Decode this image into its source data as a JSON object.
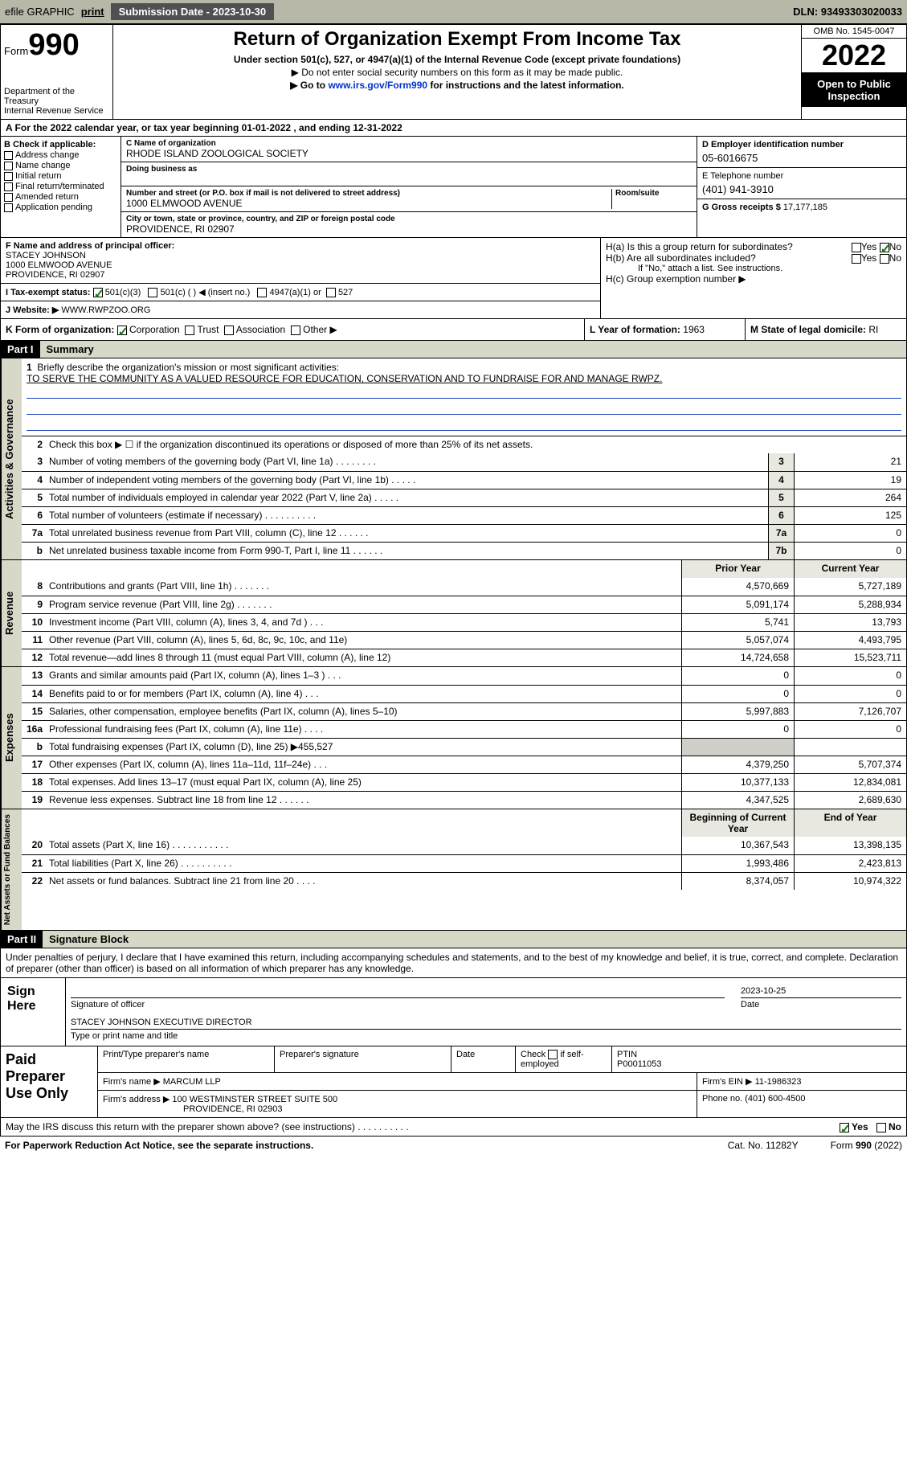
{
  "topbar": {
    "efile": "efile GRAPHIC",
    "print": "print",
    "sub_label": "Submission Date - 2023-10-30",
    "dln": "DLN: 93493303020033"
  },
  "header": {
    "form_word": "Form",
    "form_num": "990",
    "dept": "Department of the Treasury\nInternal Revenue Service",
    "title": "Return of Organization Exempt From Income Tax",
    "subtitle": "Under section 501(c), 527, or 4947(a)(1) of the Internal Revenue Code (except private foundations)",
    "do_not_enter": "▶ Do not enter social security numbers on this form as it may be made public.",
    "goto_pre": "▶ Go to ",
    "goto_link": "www.irs.gov/Form990",
    "goto_post": " for instructions and the latest information.",
    "omb": "OMB No. 1545-0047",
    "year": "2022",
    "inspect": "Open to Public Inspection"
  },
  "row_a": "A For the 2022 calendar year, or tax year beginning 01-01-2022    , and ending 12-31-2022",
  "col_b": {
    "label": "B Check if applicable:",
    "items": [
      "Address change",
      "Name change",
      "Initial return",
      "Final return/terminated",
      "Amended return",
      "Application pending"
    ]
  },
  "col_c": {
    "name_label": "C Name of organization",
    "name": "RHODE ISLAND ZOOLOGICAL SOCIETY",
    "dba_label": "Doing business as",
    "dba": "",
    "addr_label": "Number and street (or P.O. box if mail is not delivered to street address)",
    "room_label": "Room/suite",
    "addr": "1000 ELMWOOD AVENUE",
    "city_label": "City or town, state or province, country, and ZIP or foreign postal code",
    "city": "PROVIDENCE, RI  02907"
  },
  "col_d": {
    "ein_label": "D Employer identification number",
    "ein": "05-6016675",
    "phone_label": "E Telephone number",
    "phone": "(401) 941-3910",
    "gross_label": "G Gross receipts $",
    "gross": "17,177,185"
  },
  "col_f": {
    "label": "F Name and address of principal officer:",
    "name": "STACEY JOHNSON",
    "addr1": "1000 ELMWOOD AVENUE",
    "addr2": "PROVIDENCE, RI  02907"
  },
  "col_h": {
    "ha": "H(a)  Is this a group return for subordinates?",
    "ha_yes": "Yes",
    "ha_no": "No",
    "hb": "H(b)  Are all subordinates included?",
    "hb_note": "If \"No,\" attach a list. See instructions.",
    "hc": "H(c)  Group exemption number ▶"
  },
  "row_i": {
    "label": "I   Tax-exempt status:",
    "opt1": "501(c)(3)",
    "opt2": "501(c) (   ) ◀ (insert no.)",
    "opt3": "4947(a)(1) or",
    "opt4": "527"
  },
  "row_j": {
    "label": "J   Website: ▶",
    "value": "WWW.RWPZOO.ORG"
  },
  "row_k": "K Form of organization:",
  "row_k_opts": [
    "Corporation",
    "Trust",
    "Association",
    "Other ▶"
  ],
  "row_l_label": "L Year of formation:",
  "row_l_val": "1963",
  "row_m_label": "M State of legal domicile:",
  "row_m_val": "RI",
  "part1": {
    "num": "Part I",
    "title": "Summary"
  },
  "summary": {
    "l1a": "Briefly describe the organization's mission or most significant activities:",
    "l1b": "TO SERVE THE COMMUNITY AS A VALUED RESOURCE FOR EDUCATION, CONSERVATION AND TO FUNDRAISE FOR AND MANAGE RWPZ.",
    "l2": "Check this box ▶ ☐  if the organization discontinued its operations or disposed of more than 25% of its net assets.",
    "lines_gov": [
      {
        "n": "3",
        "d": "Number of voting members of the governing body (Part VI, line 1a)  .   .   .   .   .   .   .   .",
        "b": "3",
        "v": "21"
      },
      {
        "n": "4",
        "d": "Number of independent voting members of the governing body (Part VI, line 1b)  .   .   .   .   .",
        "b": "4",
        "v": "19"
      },
      {
        "n": "5",
        "d": "Total number of individuals employed in calendar year 2022 (Part V, line 2a)   .   .   .   .   .",
        "b": "5",
        "v": "264"
      },
      {
        "n": "6",
        "d": "Total number of volunteers (estimate if necessary)   .   .   .   .   .   .   .   .   .   .",
        "b": "6",
        "v": "125"
      },
      {
        "n": "7a",
        "d": "Total unrelated business revenue from Part VIII, column (C), line 12   .   .   .   .   .   .",
        "b": "7a",
        "v": "0"
      },
      {
        "n": "b",
        "d": "Net unrelated business taxable income from Form 990-T, Part I, line 11   .   .   .   .   .   .",
        "b": "7b",
        "v": "0"
      }
    ],
    "hdr_prior": "Prior Year",
    "hdr_curr": "Current Year",
    "lines_rev": [
      {
        "n": "8",
        "d": "Contributions and grants (Part VIII, line 1h)   .   .   .   .   .   .   .",
        "p": "4,570,669",
        "c": "5,727,189"
      },
      {
        "n": "9",
        "d": "Program service revenue (Part VIII, line 2g)   .   .   .   .   .   .   .",
        "p": "5,091,174",
        "c": "5,288,934"
      },
      {
        "n": "10",
        "d": "Investment income (Part VIII, column (A), lines 3, 4, and 7d )   .   .   .",
        "p": "5,741",
        "c": "13,793"
      },
      {
        "n": "11",
        "d": "Other revenue (Part VIII, column (A), lines 5, 6d, 8c, 9c, 10c, and 11e)",
        "p": "5,057,074",
        "c": "4,493,795"
      },
      {
        "n": "12",
        "d": "Total revenue—add lines 8 through 11 (must equal Part VIII, column (A), line 12)",
        "p": "14,724,658",
        "c": "15,523,711"
      }
    ],
    "lines_exp": [
      {
        "n": "13",
        "d": "Grants and similar amounts paid (Part IX, column (A), lines 1–3 )   .   .   .",
        "p": "0",
        "c": "0"
      },
      {
        "n": "14",
        "d": "Benefits paid to or for members (Part IX, column (A), line 4)   .   .   .",
        "p": "0",
        "c": "0"
      },
      {
        "n": "15",
        "d": "Salaries, other compensation, employee benefits (Part IX, column (A), lines 5–10)",
        "p": "5,997,883",
        "c": "7,126,707"
      },
      {
        "n": "16a",
        "d": "Professional fundraising fees (Part IX, column (A), line 11e)   .   .   .   .",
        "p": "0",
        "c": "0"
      },
      {
        "n": "b",
        "d": "Total fundraising expenses (Part IX, column (D), line 25) ▶455,527",
        "p": "",
        "c": "",
        "shade": true
      },
      {
        "n": "17",
        "d": "Other expenses (Part IX, column (A), lines 11a–11d, 11f–24e)   .   .   .",
        "p": "4,379,250",
        "c": "5,707,374"
      },
      {
        "n": "18",
        "d": "Total expenses. Add lines 13–17 (must equal Part IX, column (A), line 25)",
        "p": "10,377,133",
        "c": "12,834,081"
      },
      {
        "n": "19",
        "d": "Revenue less expenses. Subtract line 18 from line 12   .   .   .   .   .   .",
        "p": "4,347,525",
        "c": "2,689,630"
      }
    ],
    "hdr_beg": "Beginning of Current Year",
    "hdr_end": "End of Year",
    "lines_na": [
      {
        "n": "20",
        "d": "Total assets (Part X, line 16)   .   .   .   .   .   .   .   .   .   .   .",
        "p": "10,367,543",
        "c": "13,398,135"
      },
      {
        "n": "21",
        "d": "Total liabilities (Part X, line 26)   .   .   .   .   .   .   .   .   .   .",
        "p": "1,993,486",
        "c": "2,423,813"
      },
      {
        "n": "22",
        "d": "Net assets or fund balances. Subtract line 21 from line 20   .   .   .   .",
        "p": "8,374,057",
        "c": "10,974,322"
      }
    ]
  },
  "vlabels": {
    "gov": "Activities & Governance",
    "rev": "Revenue",
    "exp": "Expenses",
    "na": "Net Assets or Fund Balances"
  },
  "part2": {
    "num": "Part II",
    "title": "Signature Block"
  },
  "sig": {
    "text": "Under penalties of perjury, I declare that I have examined this return, including accompanying schedules and statements, and to the best of my knowledge and belief, it is true, correct, and complete. Declaration of preparer (other than officer) is based on all information of which preparer has any knowledge.",
    "here": "Sign Here",
    "sig_label": "Signature of officer",
    "date_label": "Date",
    "date": "2023-10-25",
    "name": "STACEY JOHNSON  EXECUTIVE DIRECTOR",
    "name_label": "Type or print name and title"
  },
  "prep": {
    "label": "Paid Preparer Use Only",
    "h1": "Print/Type preparer's name",
    "h2": "Preparer's signature",
    "h3": "Date",
    "h4_a": "Check",
    "h4_b": "if self-employed",
    "h5": "PTIN",
    "ptin": "P00011053",
    "firm_name_l": "Firm's name    ▶",
    "firm_name": "MARCUM LLP",
    "firm_ein_l": "Firm's EIN ▶",
    "firm_ein": "11-1986323",
    "firm_addr_l": "Firm's address ▶",
    "firm_addr1": "100 WESTMINSTER STREET SUITE 500",
    "firm_addr2": "PROVIDENCE, RI  02903",
    "phone_l": "Phone no.",
    "phone": "(401) 600-4500"
  },
  "discuss": {
    "q": "May the IRS discuss this return with the preparer shown above? (see instructions)   .   .   .   .   .   .   .   .   .   .",
    "yes": "Yes",
    "no": "No"
  },
  "footer": {
    "left": "For Paperwork Reduction Act Notice, see the separate instructions.",
    "mid": "Cat. No. 11282Y",
    "right_a": "Form ",
    "right_b": "990",
    "right_c": " (2022)"
  },
  "colors": {
    "topbar_bg": "#b8b8a8",
    "btn_bg": "#505050",
    "check_green": "#1a7a1a",
    "shade": "#d8d8c8",
    "link": "#0033cc"
  }
}
